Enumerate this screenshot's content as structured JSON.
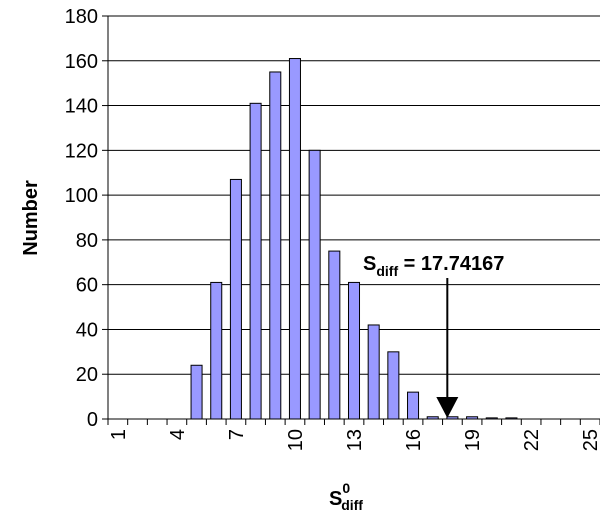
{
  "chart_data": {
    "type": "bar",
    "title": "",
    "xlabel_main": "S",
    "xlabel_sup": "0",
    "xlabel_sub": "diff",
    "ylabel": "Number",
    "ylim": [
      0,
      180
    ],
    "ytick_step": 20,
    "categories": [
      1,
      2,
      3,
      4,
      5,
      6,
      7,
      8,
      9,
      10,
      11,
      12,
      13,
      14,
      15,
      16,
      17,
      18,
      19,
      20,
      21,
      22,
      23,
      24,
      25
    ],
    "xtick_labels_shown": [
      1,
      4,
      7,
      10,
      13,
      16,
      19,
      22,
      25
    ],
    "values": [
      0,
      0,
      0,
      0,
      24,
      61,
      107,
      141,
      155,
      161,
      120,
      75,
      61,
      42,
      30,
      12,
      1,
      1,
      1,
      0.5,
      0.5,
      0,
      0,
      0,
      0
    ],
    "grid": true,
    "bar_color": "#9999ff",
    "bar_edge_color": "#000000",
    "annotation": {
      "label_main": "S",
      "label_sub": "diff",
      "label_value": " = 17.74167",
      "x": 17.74167
    }
  }
}
